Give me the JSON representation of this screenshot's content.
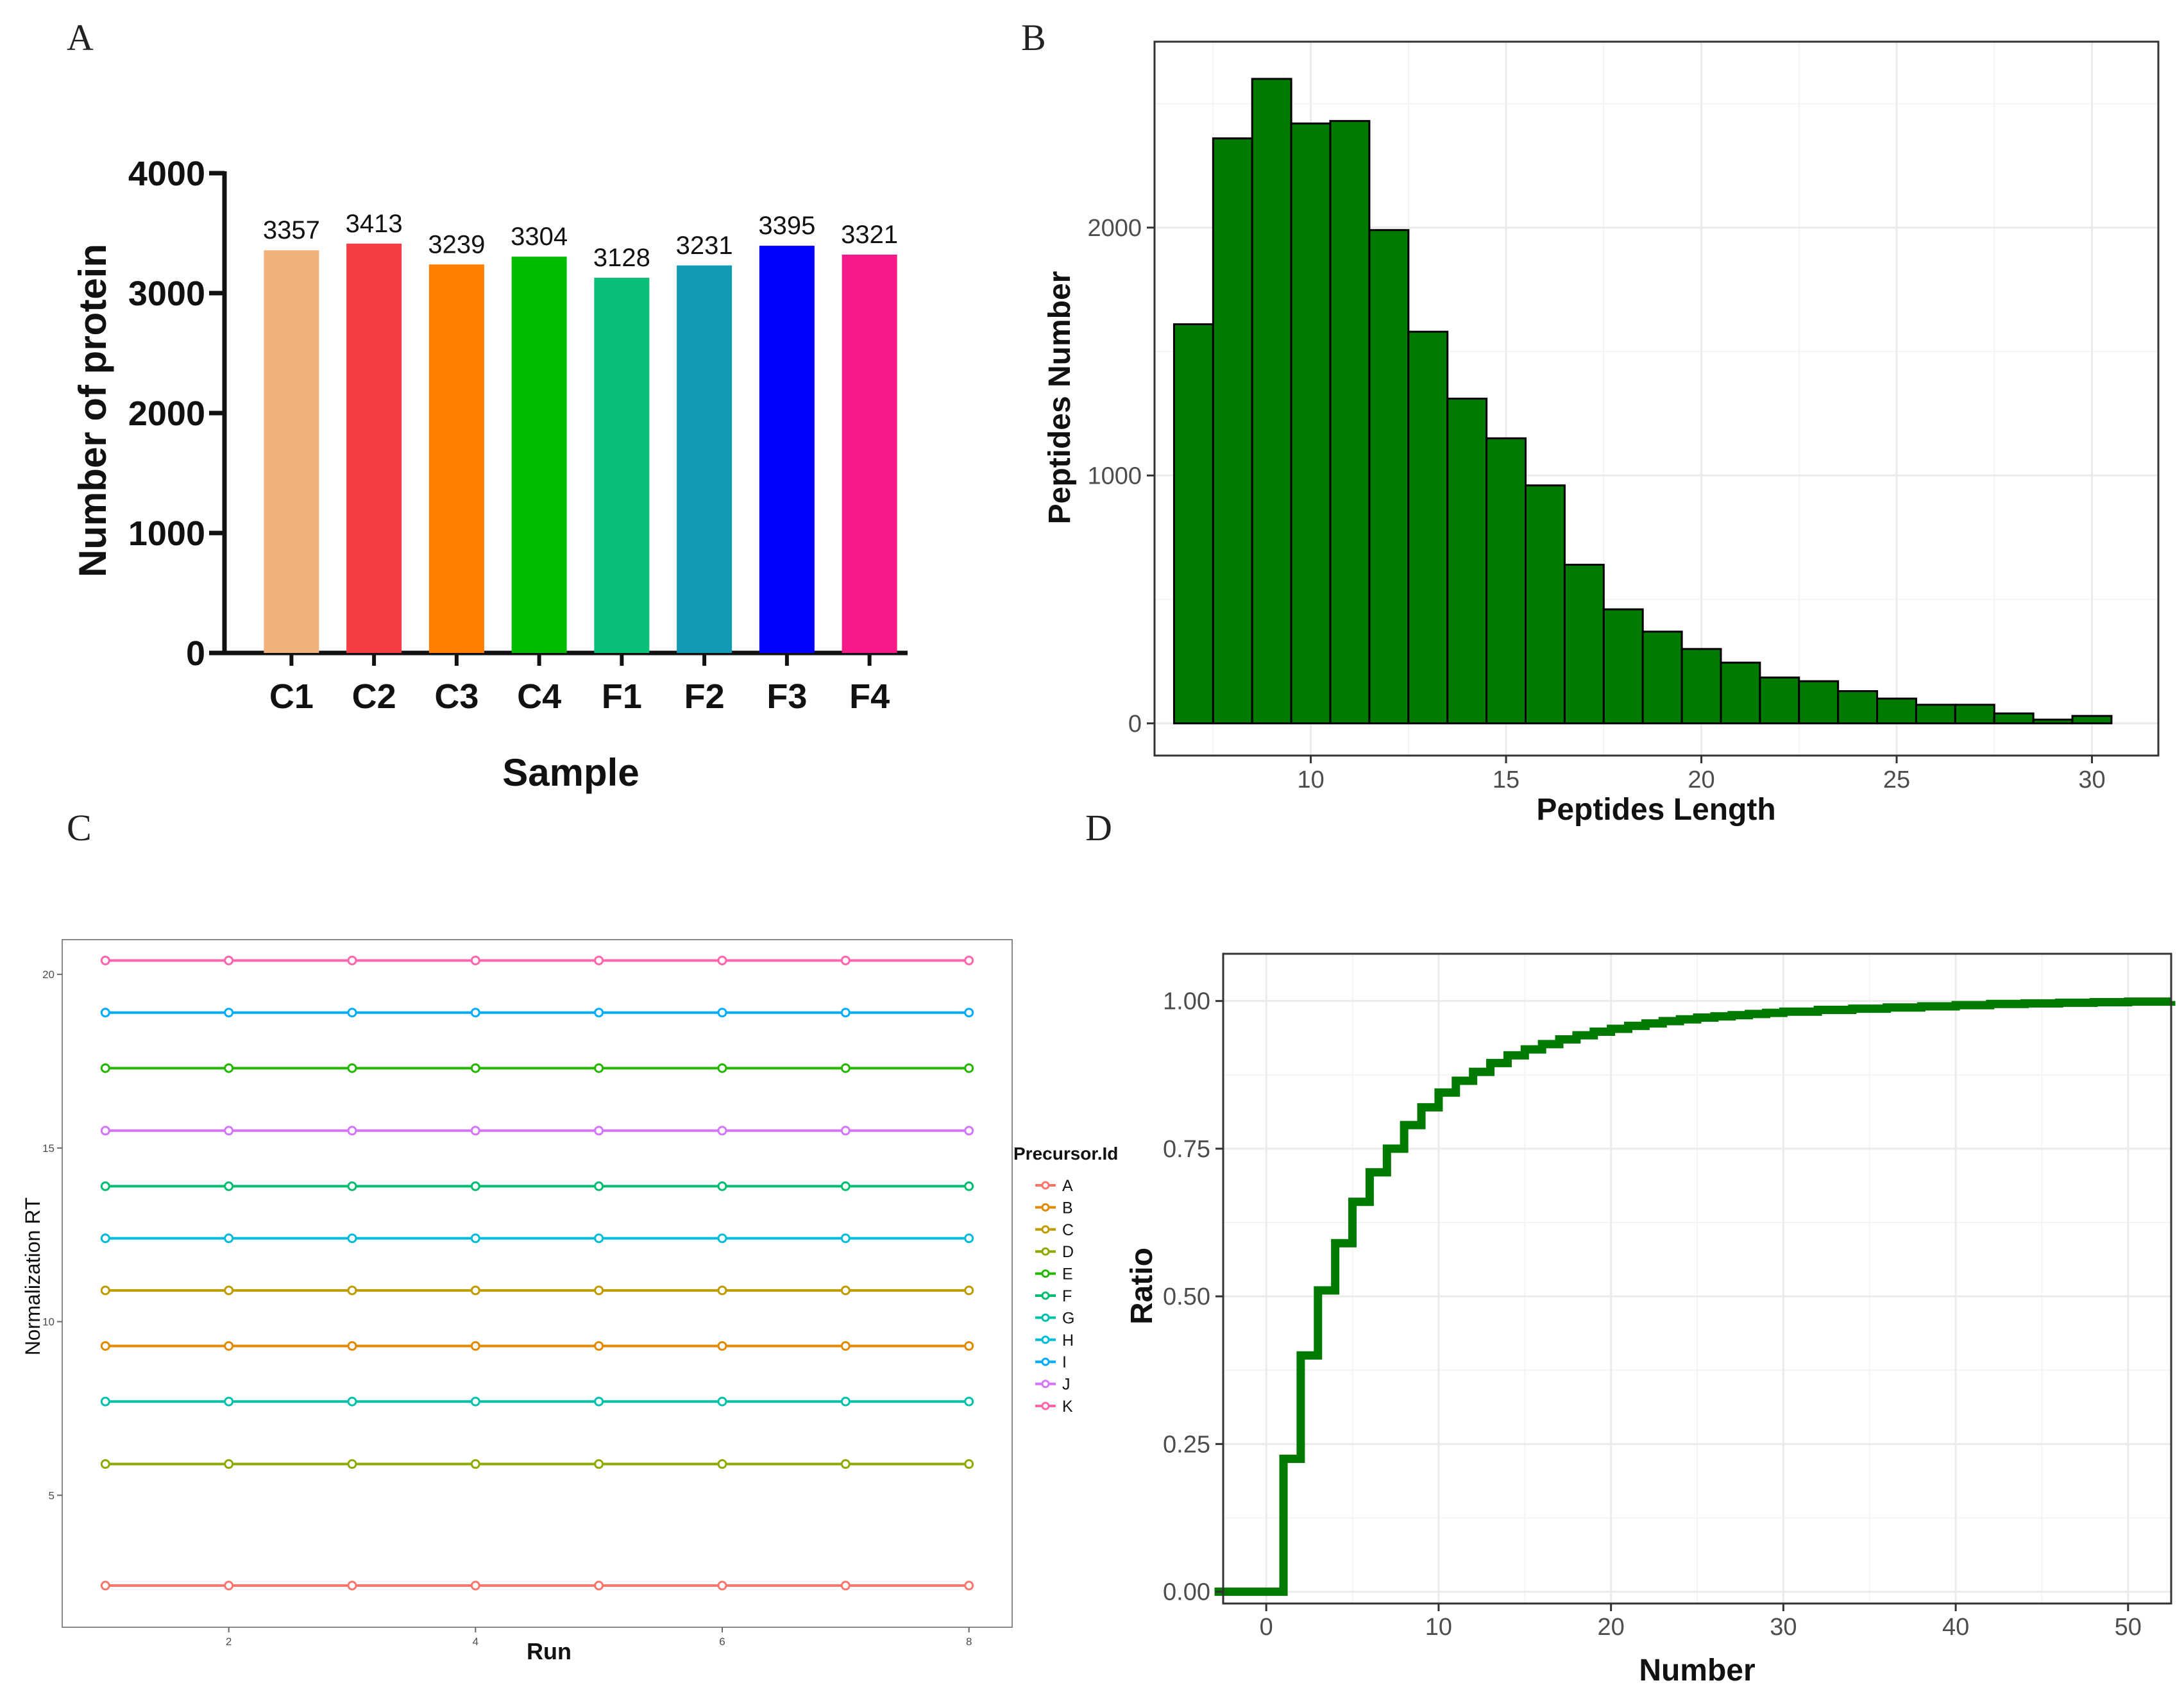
{
  "panels": {
    "a": "A",
    "b": "B",
    "c": "C",
    "d": "D"
  },
  "colors": {
    "hist_fill": "#007a00",
    "ecdf_line": "#007a00",
    "grid": "#ebebeb",
    "frame": "#333333"
  },
  "chart_data": [
    {
      "id": "A",
      "type": "bar",
      "title": "",
      "xlabel": "Sample",
      "ylabel": "Number of protein",
      "categories": [
        "C1",
        "C2",
        "C3",
        "C4",
        "F1",
        "F2",
        "F3",
        "F4"
      ],
      "values": [
        3357,
        3413,
        3239,
        3304,
        3128,
        3231,
        3395,
        3321
      ],
      "data_labels": [
        "3357",
        "3413",
        "3239",
        "3304",
        "3128",
        "3231",
        "3395",
        "3321"
      ],
      "bar_colors": [
        "#f0b27a",
        "#f53d43",
        "#ff7f00",
        "#00bd00",
        "#07bf77",
        "#109ab3",
        "#0000ff",
        "#f71889"
      ],
      "ylim": [
        0,
        4000
      ],
      "yticks": [
        0,
        1000,
        2000,
        3000,
        4000
      ],
      "ytick_labels": [
        "0",
        "1000",
        "2000",
        "3000",
        "4000"
      ],
      "grid": false
    },
    {
      "id": "B",
      "type": "bar",
      "title": "",
      "xlabel": "Peptides Length",
      "ylabel": "Peptides Number",
      "x": [
        7,
        8,
        9,
        10,
        11,
        12,
        13,
        14,
        15,
        16,
        17,
        18,
        19,
        20,
        21,
        22,
        23,
        24,
        25,
        26,
        27,
        28,
        29,
        30
      ],
      "values": [
        1610,
        2360,
        2600,
        2420,
        2430,
        1990,
        1580,
        1310,
        1150,
        960,
        640,
        460,
        370,
        300,
        245,
        185,
        170,
        130,
        100,
        75,
        75,
        40,
        15,
        30
      ],
      "xlim": [
        6,
        31.7
      ],
      "ylim": [
        -130,
        2750
      ],
      "xticks": [
        10,
        15,
        20,
        25,
        30
      ],
      "xtick_labels": [
        "10",
        "15",
        "20",
        "25",
        "30"
      ],
      "yticks": [
        0,
        1000,
        2000
      ],
      "ytick_labels": [
        "0",
        "1000",
        "2000"
      ],
      "grid": true
    },
    {
      "id": "C",
      "type": "line",
      "title": "",
      "xlabel": "Run",
      "ylabel": "Normalization RT",
      "legend_title": "Precursor.Id",
      "legend_position": "right",
      "x": [
        1,
        2,
        3,
        4,
        5,
        6,
        7,
        8
      ],
      "xlim": [
        0.65,
        8.35
      ],
      "ylim": [
        1.2,
        21
      ],
      "xticks": [
        2,
        4,
        6,
        8
      ],
      "xtick_labels": [
        "2",
        "4",
        "6",
        "8"
      ],
      "yticks": [
        5,
        10,
        15,
        20
      ],
      "ytick_labels": [
        "5",
        "10",
        "15",
        "20"
      ],
      "series": [
        {
          "name": "A",
          "color": "#f8766d",
          "values": [
            2.4,
            2.4,
            2.4,
            2.4,
            2.4,
            2.4,
            2.4,
            2.4
          ]
        },
        {
          "name": "B",
          "color": "#e18a00",
          "values": [
            9.3,
            9.3,
            9.3,
            9.3,
            9.3,
            9.3,
            9.3,
            9.3
          ]
        },
        {
          "name": "C",
          "color": "#be9c00",
          "values": [
            10.9,
            10.9,
            10.9,
            10.9,
            10.9,
            10.9,
            10.9,
            10.9
          ]
        },
        {
          "name": "D",
          "color": "#8cab00",
          "values": [
            5.9,
            5.9,
            5.9,
            5.9,
            5.9,
            5.9,
            5.9,
            5.9
          ]
        },
        {
          "name": "E",
          "color": "#24b700",
          "values": [
            17.3,
            17.3,
            17.3,
            17.3,
            17.3,
            17.3,
            17.3,
            17.3
          ]
        },
        {
          "name": "F",
          "color": "#00be70",
          "values": [
            13.9,
            13.9,
            13.9,
            13.9,
            13.9,
            13.9,
            13.9,
            13.9
          ]
        },
        {
          "name": "G",
          "color": "#00c1ab",
          "values": [
            7.7,
            7.7,
            7.7,
            7.7,
            7.7,
            7.7,
            7.7,
            7.7
          ]
        },
        {
          "name": "H",
          "color": "#00bbda",
          "values": [
            12.4,
            12.4,
            12.4,
            12.4,
            12.4,
            12.4,
            12.4,
            12.4
          ]
        },
        {
          "name": "I",
          "color": "#00acfc",
          "values": [
            18.9,
            18.9,
            18.9,
            18.9,
            18.9,
            18.9,
            18.9,
            18.9
          ]
        },
        {
          "name": "J",
          "color": "#d575fe",
          "values": [
            15.5,
            15.5,
            15.5,
            15.5,
            15.5,
            15.5,
            15.5,
            15.5
          ]
        },
        {
          "name": "K",
          "color": "#ff65ac",
          "values": [
            20.4,
            20.4,
            20.4,
            20.4,
            20.4,
            20.4,
            20.4,
            20.4
          ]
        }
      ],
      "grid": false
    },
    {
      "id": "D",
      "type": "line",
      "title": "",
      "xlabel": "Number",
      "ylabel": "Ratio",
      "step": true,
      "x": [
        -3,
        1,
        2,
        3,
        4,
        5,
        6,
        7,
        8,
        9,
        10,
        11,
        12,
        13,
        14,
        15,
        16,
        17,
        18,
        19,
        20,
        21,
        22,
        23,
        24,
        25,
        26,
        27,
        28,
        29,
        30,
        32,
        34,
        36,
        38,
        40,
        42,
        44,
        46,
        48,
        50,
        52.5
      ],
      "y": [
        0.0,
        0.225,
        0.4,
        0.51,
        0.59,
        0.66,
        0.71,
        0.75,
        0.79,
        0.82,
        0.845,
        0.865,
        0.88,
        0.895,
        0.908,
        0.918,
        0.927,
        0.935,
        0.942,
        0.948,
        0.953,
        0.958,
        0.962,
        0.966,
        0.969,
        0.972,
        0.974,
        0.976,
        0.978,
        0.98,
        0.982,
        0.985,
        0.987,
        0.989,
        0.991,
        0.993,
        0.995,
        0.996,
        0.997,
        0.998,
        0.999,
        1.0
      ],
      "xlim": [
        -2.5,
        52.5
      ],
      "ylim": [
        -0.02,
        1.08
      ],
      "xticks": [
        0,
        10,
        20,
        30,
        40,
        50
      ],
      "xtick_labels": [
        "0",
        "10",
        "20",
        "30",
        "40",
        "50"
      ],
      "yticks": [
        0,
        0.25,
        0.5,
        0.75,
        1.0
      ],
      "ytick_labels": [
        "0.00",
        "0.25",
        "0.50",
        "0.75",
        "1.00"
      ],
      "grid": true
    }
  ]
}
